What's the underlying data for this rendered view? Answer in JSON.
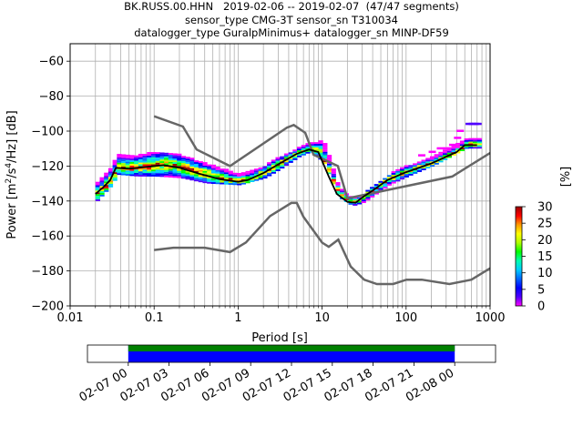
{
  "chart_data": {
    "type": "heatmap",
    "title_lines": [
      "BK.RUSS.00.HHN   2019-02-06 -- 2019-02-07  (47/47 segments)",
      "sensor_type CMG-3T sensor_sn T310034",
      "datalogger_type GuralpMinimus+ datalogger_sn MINP-DF59"
    ],
    "xlabel": "Period [s]",
    "ylabel_parts": [
      "Power [m",
      "2",
      "/s",
      "4",
      "/Hz] [dB]"
    ],
    "x_scale": "log",
    "xlim": [
      0.01,
      1000
    ],
    "ylim": [
      -200,
      -50
    ],
    "x_ticks": [
      0.01,
      0.1,
      1,
      10,
      100,
      1000
    ],
    "x_tick_labels": [
      "0.01",
      "0.1",
      "1",
      "10",
      "100",
      "1000"
    ],
    "y_ticks": [
      -200,
      -180,
      -160,
      -140,
      -120,
      -100,
      -80,
      -60
    ],
    "y_tick_labels": [
      "−200",
      "−180",
      "−160",
      "−140",
      "−120",
      "−100",
      "−80",
      "−60"
    ],
    "grid": true,
    "colorbar": {
      "label": "[%]",
      "range": [
        0,
        30
      ],
      "ticks": [
        0,
        5,
        10,
        15,
        20,
        25,
        30
      ],
      "tick_labels": [
        "0",
        "5",
        "10",
        "15",
        "20",
        "25",
        "30"
      ],
      "colormap": [
        "#ff00ff",
        "#5000ff",
        "#0000ff",
        "#0066ff",
        "#00ccff",
        "#00ffb0",
        "#00ff00",
        "#b0ff00",
        "#ffff00",
        "#ff9900",
        "#ff0000",
        "#990000"
      ]
    },
    "noise_model_high": [
      [
        0.1,
        -91.5
      ],
      [
        0.22,
        -97.4
      ],
      [
        0.32,
        -110.5
      ],
      [
        0.8,
        -120
      ],
      [
        3.8,
        -98
      ],
      [
        4.6,
        -96.5
      ],
      [
        6.3,
        -101
      ],
      [
        7.9,
        -113.5
      ],
      [
        15.4,
        -120
      ],
      [
        20,
        -138.5
      ],
      [
        354,
        -126
      ],
      [
        1000,
        -112.5
      ]
    ],
    "noise_model_low": [
      [
        0.1,
        -168
      ],
      [
        0.17,
        -166.7
      ],
      [
        0.4,
        -166.7
      ],
      [
        0.8,
        -169.2
      ],
      [
        1.24,
        -163.7
      ],
      [
        2.4,
        -148.6
      ],
      [
        4.3,
        -141.1
      ],
      [
        5,
        -141.1
      ],
      [
        6,
        -149
      ],
      [
        10,
        -163.8
      ],
      [
        12,
        -166.2
      ],
      [
        15.6,
        -162.1
      ],
      [
        21.9,
        -177.5
      ],
      [
        31.6,
        -185
      ],
      [
        45,
        -187.5
      ],
      [
        70,
        -187.5
      ],
      [
        101,
        -185
      ],
      [
        154,
        -185
      ],
      [
        328,
        -187.5
      ],
      [
        600,
        -185
      ],
      [
        1000,
        -178.5
      ]
    ],
    "median_curve": [
      [
        0.02,
        -136
      ],
      [
        0.025,
        -132
      ],
      [
        0.03,
        -128
      ],
      [
        0.035,
        -121
      ],
      [
        0.05,
        -121.5
      ],
      [
        0.08,
        -120.5
      ],
      [
        0.13,
        -119.5
      ],
      [
        0.2,
        -121
      ],
      [
        0.35,
        -124.5
      ],
      [
        0.6,
        -127.5
      ],
      [
        1,
        -129
      ],
      [
        1.3,
        -128
      ],
      [
        2,
        -124
      ],
      [
        3,
        -119
      ],
      [
        5,
        -113
      ],
      [
        7,
        -110.5
      ],
      [
        9,
        -112
      ],
      [
        12,
        -126
      ],
      [
        15,
        -136
      ],
      [
        20,
        -140.5
      ],
      [
        25,
        -141
      ],
      [
        30,
        -138
      ],
      [
        40,
        -134
      ],
      [
        60,
        -128
      ],
      [
        100,
        -123.5
      ],
      [
        200,
        -118.5
      ],
      [
        400,
        -112
      ],
      [
        500,
        -108
      ],
      [
        700,
        -108
      ]
    ],
    "lower_envelope": [
      [
        0.02,
        -140
      ],
      [
        0.03,
        -131
      ],
      [
        0.035,
        -125
      ],
      [
        0.06,
        -126
      ],
      [
        0.1,
        -126
      ],
      [
        0.2,
        -127
      ],
      [
        0.4,
        -130
      ],
      [
        1,
        -131
      ],
      [
        2,
        -127
      ],
      [
        3,
        -122
      ],
      [
        5,
        -115
      ],
      [
        7,
        -112
      ],
      [
        10,
        -118
      ],
      [
        15,
        -138
      ],
      [
        22,
        -143
      ],
      [
        30,
        -141
      ],
      [
        60,
        -131
      ],
      [
        100,
        -126
      ],
      [
        200,
        -120
      ],
      [
        500,
        -110
      ],
      [
        700,
        -110
      ]
    ],
    "upper_envelope": [
      [
        0.02,
        -130
      ],
      [
        0.03,
        -120
      ],
      [
        0.035,
        -114
      ],
      [
        0.06,
        -114
      ],
      [
        0.1,
        -112
      ],
      [
        0.2,
        -114
      ],
      [
        0.4,
        -119
      ],
      [
        1,
        -125
      ],
      [
        2,
        -120
      ],
      [
        3,
        -115
      ],
      [
        5,
        -110
      ],
      [
        7,
        -107
      ],
      [
        10,
        -106
      ],
      [
        15,
        -132
      ],
      [
        22,
        -139
      ],
      [
        30,
        -136
      ],
      [
        60,
        -125
      ],
      [
        100,
        -120
      ],
      [
        200,
        -115
      ],
      [
        500,
        -105
      ],
      [
        700,
        -105
      ]
    ],
    "outliers": [
      [
        400,
        -104
      ],
      [
        430,
        -100
      ],
      [
        550,
        -96
      ],
      [
        600,
        -96
      ],
      [
        650,
        -96
      ],
      [
        700,
        -96
      ],
      [
        200,
        -112
      ],
      [
        250,
        -110
      ],
      [
        300,
        -110
      ],
      [
        350,
        -108
      ],
      [
        150,
        -114
      ]
    ],
    "timeline": {
      "tick_labels": [
        "02-07 00",
        "02-07 03",
        "02-07 06",
        "02-07 09",
        "02-07 12",
        "02-07 15",
        "02-07 18",
        "02-07 21",
        "02-08 00"
      ],
      "hours_span": [
        -3,
        27
      ],
      "coverage_hours": [
        0,
        24
      ],
      "coverage_color": "#0000ff",
      "data_color": "#008000"
    }
  }
}
